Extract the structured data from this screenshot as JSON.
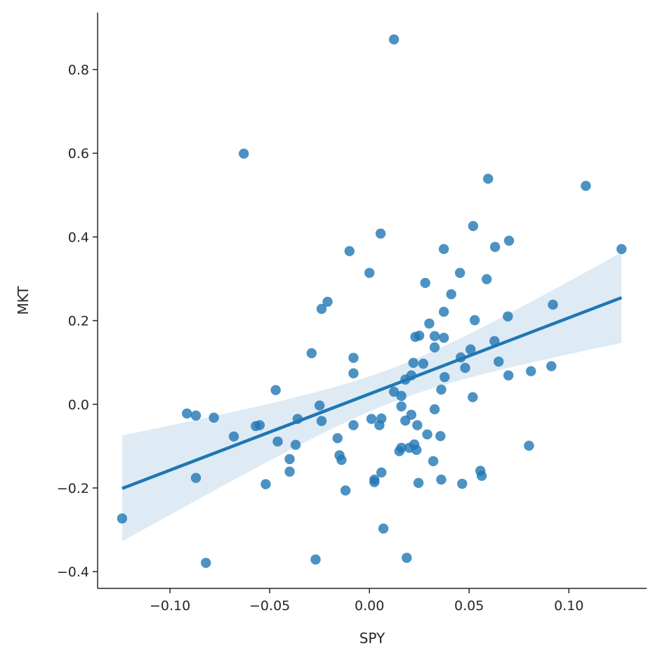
{
  "chart_data": {
    "type": "scatter",
    "title": "",
    "xlabel": "SPY",
    "ylabel": "MKT",
    "xlim": [
      -0.1363,
      0.139
    ],
    "ylim": [
      -0.44,
      0.936
    ],
    "xticks": [
      -0.1,
      -0.05,
      0.0,
      0.05,
      0.1
    ],
    "xtick_labels": [
      "−0.10",
      "−0.05",
      "0.00",
      "0.05",
      "0.10"
    ],
    "yticks": [
      -0.4,
      -0.2,
      0.0,
      0.2,
      0.4,
      0.6,
      0.8
    ],
    "ytick_labels": [
      "−0.4",
      "−0.2",
      "0.0",
      "0.2",
      "0.4",
      "0.6",
      "0.8"
    ],
    "grid": false,
    "colors": {
      "points": "#1f77b4",
      "line": "#1f77b4",
      "ci": "#1f77b4",
      "axis": "#262626"
    },
    "regression": {
      "slope": 1.82,
      "intercept": 0.025,
      "ci_level": 0.95
    },
    "points": [
      [
        -0.124,
        -0.273
      ],
      [
        -0.0915,
        -0.022
      ],
      [
        -0.087,
        -0.027
      ],
      [
        -0.087,
        -0.176
      ],
      [
        -0.082,
        -0.379
      ],
      [
        -0.078,
        -0.032
      ],
      [
        -0.068,
        -0.077
      ],
      [
        -0.063,
        0.599
      ],
      [
        -0.057,
        -0.052
      ],
      [
        -0.055,
        -0.05
      ],
      [
        -0.052,
        -0.191
      ],
      [
        -0.047,
        0.034
      ],
      [
        -0.046,
        -0.089
      ],
      [
        -0.04,
        -0.131
      ],
      [
        -0.04,
        -0.161
      ],
      [
        -0.037,
        -0.097
      ],
      [
        -0.036,
        -0.035
      ],
      [
        -0.029,
        0.122
      ],
      [
        -0.027,
        -0.371
      ],
      [
        -0.025,
        -0.003
      ],
      [
        -0.024,
        0.228
      ],
      [
        -0.024,
        -0.04
      ],
      [
        -0.021,
        0.245
      ],
      [
        -0.016,
        -0.081
      ],
      [
        -0.015,
        -0.122
      ],
      [
        -0.014,
        -0.133
      ],
      [
        -0.012,
        -0.206
      ],
      [
        -0.01,
        0.366
      ],
      [
        -0.008,
        0.074
      ],
      [
        -0.008,
        0.111
      ],
      [
        -0.008,
        -0.05
      ],
      [
        0.0,
        0.314
      ],
      [
        0.001,
        -0.035
      ],
      [
        0.0025,
        -0.18
      ],
      [
        0.0025,
        -0.186
      ],
      [
        0.005,
        -0.05
      ],
      [
        0.0056,
        0.408
      ],
      [
        0.006,
        -0.034
      ],
      [
        0.006,
        -0.163
      ],
      [
        0.007,
        -0.297
      ],
      [
        0.0123,
        0.872
      ],
      [
        0.0123,
        0.03
      ],
      [
        0.016,
        0.02
      ],
      [
        0.016,
        -0.005
      ],
      [
        0.015,
        -0.112
      ],
      [
        0.016,
        -0.104
      ],
      [
        0.018,
        -0.039
      ],
      [
        0.018,
        0.059
      ],
      [
        0.0187,
        -0.367
      ],
      [
        0.02,
        -0.104
      ],
      [
        0.021,
        -0.025
      ],
      [
        0.021,
        0.069
      ],
      [
        0.022,
        0.099
      ],
      [
        0.0225,
        -0.096
      ],
      [
        0.023,
        0.161
      ],
      [
        0.0236,
        -0.109
      ],
      [
        0.024,
        -0.05
      ],
      [
        0.0246,
        -0.188
      ],
      [
        0.025,
        0.164
      ],
      [
        0.027,
        0.097
      ],
      [
        0.028,
        0.29
      ],
      [
        0.029,
        -0.072
      ],
      [
        0.03,
        0.193
      ],
      [
        0.032,
        -0.136
      ],
      [
        0.0327,
        0.136
      ],
      [
        0.0327,
        0.163
      ],
      [
        0.0327,
        -0.012
      ],
      [
        0.0356,
        -0.076
      ],
      [
        0.036,
        0.035
      ],
      [
        0.036,
        -0.18
      ],
      [
        0.0373,
        0.371
      ],
      [
        0.0373,
        0.221
      ],
      [
        0.0373,
        0.159
      ],
      [
        0.0377,
        0.065
      ],
      [
        0.041,
        0.263
      ],
      [
        0.0454,
        0.314
      ],
      [
        0.0458,
        0.112
      ],
      [
        0.0465,
        -0.19
      ],
      [
        0.048,
        0.087
      ],
      [
        0.0507,
        0.131
      ],
      [
        0.0518,
        0.017
      ],
      [
        0.052,
        0.426
      ],
      [
        0.0528,
        0.201
      ],
      [
        0.0556,
        -0.159
      ],
      [
        0.0563,
        -0.171
      ],
      [
        0.0588,
        0.299
      ],
      [
        0.0595,
        0.539
      ],
      [
        0.0627,
        0.151
      ],
      [
        0.063,
        0.376
      ],
      [
        0.0648,
        0.102
      ],
      [
        0.0694,
        0.21
      ],
      [
        0.0697,
        0.069
      ],
      [
        0.07,
        0.391
      ],
      [
        0.08,
        -0.099
      ],
      [
        0.081,
        0.079
      ],
      [
        0.0912,
        0.091
      ],
      [
        0.092,
        0.238
      ],
      [
        0.1085,
        0.522
      ],
      [
        0.1264,
        0.371
      ]
    ]
  }
}
